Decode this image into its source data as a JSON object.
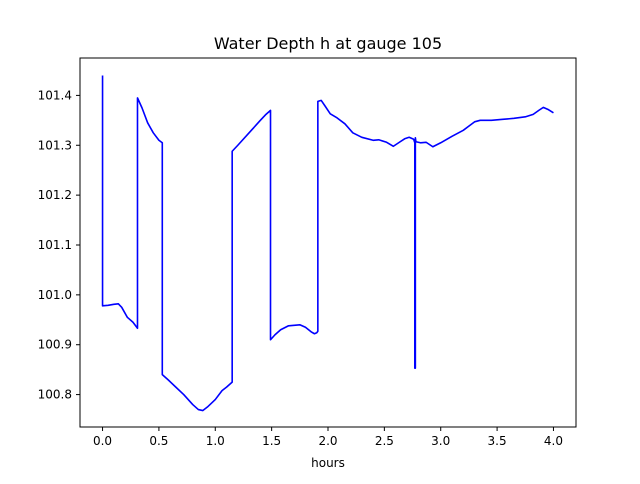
{
  "chart_data": {
    "type": "line",
    "title": "Water Depth h at gauge 105",
    "xlabel": "hours",
    "ylabel": "",
    "xlim": [
      -0.2,
      4.2
    ],
    "ylim": [
      100.735,
      101.475
    ],
    "grid": false,
    "x_ticks": [
      0.0,
      0.5,
      1.0,
      1.5,
      2.0,
      2.5,
      3.0,
      3.5,
      4.0
    ],
    "x_tick_labels": [
      "0.0",
      "0.5",
      "1.0",
      "1.5",
      "2.0",
      "2.5",
      "3.0",
      "3.5",
      "4.0"
    ],
    "y_ticks": [
      100.8,
      100.9,
      101.0,
      101.1,
      101.2,
      101.3,
      101.4
    ],
    "y_tick_labels": [
      "100.8",
      "100.9",
      "101.0",
      "101.1",
      "101.2",
      "101.3",
      "101.4"
    ],
    "series": [
      {
        "color": "#0000ff",
        "x": [
          0.0,
          0.0,
          0.05,
          0.1,
          0.14,
          0.17,
          0.22,
          0.27,
          0.31,
          0.31,
          0.35,
          0.4,
          0.45,
          0.5,
          0.53,
          0.53,
          0.58,
          0.65,
          0.72,
          0.8,
          0.85,
          0.89,
          0.93,
          1.0,
          1.06,
          1.1,
          1.15,
          1.15,
          1.2,
          1.3,
          1.4,
          1.45,
          1.49,
          1.49,
          1.53,
          1.58,
          1.65,
          1.75,
          1.8,
          1.85,
          1.88,
          1.9,
          1.91,
          1.91,
          1.94,
          1.97,
          2.02,
          2.08,
          2.15,
          2.22,
          2.3,
          2.4,
          2.45,
          2.52,
          2.58,
          2.64,
          2.68,
          2.72,
          2.76,
          2.77,
          2.77,
          2.775,
          2.775,
          2.78,
          2.82,
          2.87,
          2.93,
          3.0,
          3.1,
          3.2,
          3.3,
          3.35,
          3.45,
          3.55,
          3.65,
          3.75,
          3.82,
          3.87,
          3.91,
          3.95,
          4.0
        ],
        "y": [
          101.44,
          100.978,
          100.979,
          100.981,
          100.982,
          100.975,
          100.955,
          100.945,
          100.933,
          101.395,
          101.375,
          101.345,
          101.325,
          101.31,
          101.305,
          100.84,
          100.83,
          100.815,
          100.8,
          100.78,
          100.77,
          100.768,
          100.775,
          100.79,
          100.808,
          100.815,
          100.825,
          101.288,
          101.3,
          101.325,
          101.35,
          101.362,
          101.37,
          100.91,
          100.92,
          100.93,
          100.938,
          100.94,
          100.935,
          100.926,
          100.922,
          100.924,
          100.927,
          101.388,
          101.39,
          101.38,
          101.363,
          101.355,
          101.343,
          101.325,
          101.316,
          101.31,
          101.311,
          101.306,
          101.298,
          101.307,
          101.313,
          101.316,
          101.312,
          101.305,
          100.853,
          100.853,
          101.315,
          101.307,
          101.305,
          101.306,
          101.297,
          101.305,
          101.318,
          101.33,
          101.347,
          101.35,
          101.35,
          101.352,
          101.354,
          101.357,
          101.362,
          101.37,
          101.376,
          101.372,
          101.365
        ]
      }
    ]
  }
}
